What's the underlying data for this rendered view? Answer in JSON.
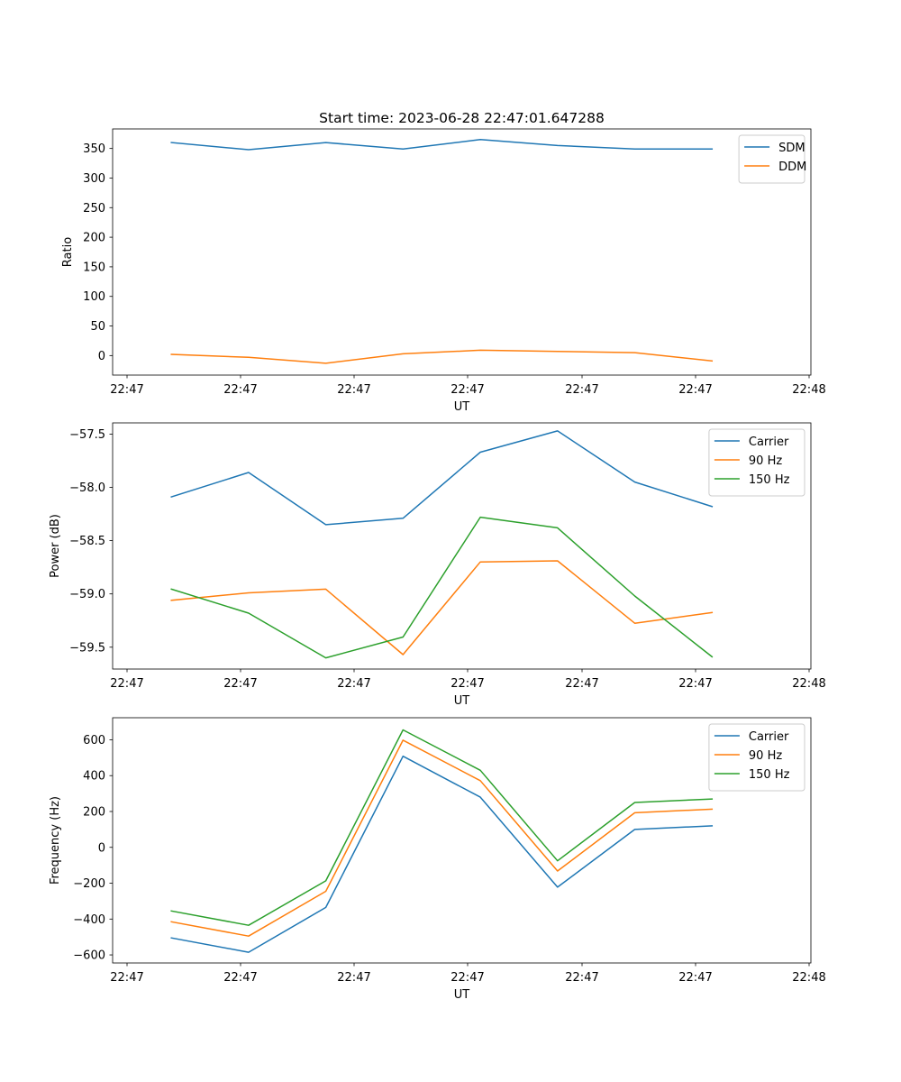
{
  "chart_data": [
    {
      "type": "line",
      "title": "Start time: 2023-06-28 22:47:01.647288",
      "xlabel": "UT",
      "ylabel": "Ratio",
      "x": [
        1,
        2,
        3,
        4,
        5,
        6,
        7,
        8
      ],
      "xtick_labels": [
        "22:47",
        "22:47",
        "22:47",
        "22:47",
        "22:47",
        "22:47",
        "22:48"
      ],
      "xlim": [
        0.24,
        9.28
      ],
      "ylim": [
        -33,
        383
      ],
      "yticks": [
        0,
        50,
        100,
        150,
        200,
        250,
        300,
        350
      ],
      "legend_position": "upper right",
      "grid": false,
      "series": [
        {
          "name": "SDM",
          "color": "#1f77b4",
          "values": [
            360,
            348,
            360,
            349,
            365,
            355,
            349,
            349
          ]
        },
        {
          "name": "DDM",
          "color": "#ff7f0e",
          "values": [
            2,
            -3,
            -13,
            3,
            9,
            7,
            5,
            -9
          ]
        }
      ]
    },
    {
      "type": "line",
      "title": "",
      "xlabel": "UT",
      "ylabel": "Power (dB)",
      "x": [
        1,
        2,
        3,
        4,
        5,
        6,
        7,
        8
      ],
      "xtick_labels": [
        "22:47",
        "22:47",
        "22:47",
        "22:47",
        "22:47",
        "22:47",
        "22:48"
      ],
      "xlim": [
        0.24,
        9.28
      ],
      "ylim": [
        -59.705,
        -57.395
      ],
      "yticks": [
        -59.5,
        -59.0,
        -58.5,
        -58.0,
        -57.5
      ],
      "ytick_labels": [
        "−59.5",
        "−59.0",
        "−58.5",
        "−58.0",
        "−57.5"
      ],
      "legend_position": "upper right",
      "grid": false,
      "series": [
        {
          "name": "Carrier",
          "color": "#1f77b4",
          "values": [
            -58.09,
            -57.86,
            -58.35,
            -58.29,
            -57.67,
            -57.47,
            -57.95,
            -58.18
          ]
        },
        {
          "name": "90 Hz",
          "color": "#ff7f0e",
          "values": [
            -59.06,
            -58.99,
            -58.955,
            -59.57,
            -58.7,
            -58.69,
            -59.275,
            -59.175
          ]
        },
        {
          "name": "150 Hz",
          "color": "#2ca02c",
          "values": [
            -58.955,
            -59.18,
            -59.6,
            -59.405,
            -58.28,
            -58.38,
            -59.02,
            -59.59
          ]
        }
      ]
    },
    {
      "type": "line",
      "title": "",
      "xlabel": "UT",
      "ylabel": "Frequency (Hz)",
      "x": [
        1,
        2,
        3,
        4,
        5,
        6,
        7,
        8
      ],
      "xtick_labels": [
        "22:47",
        "22:47",
        "22:47",
        "22:47",
        "22:47",
        "22:47",
        "22:48"
      ],
      "xlim": [
        0.24,
        9.28
      ],
      "ylim": [
        -645,
        723
      ],
      "yticks": [
        -600,
        -400,
        -200,
        0,
        200,
        400,
        600
      ],
      "ytick_labels": [
        "−600",
        "−400",
        "−200",
        "0",
        "200",
        "400",
        "600"
      ],
      "legend_position": "upper right",
      "grid": false,
      "series": [
        {
          "name": "Carrier",
          "color": "#1f77b4",
          "values": [
            -505,
            -585,
            -335,
            508,
            280,
            -222,
            100,
            120
          ]
        },
        {
          "name": "90 Hz",
          "color": "#ff7f0e",
          "values": [
            -415,
            -495,
            -245,
            598,
            372,
            -132,
            193,
            213
          ]
        },
        {
          "name": "150 Hz",
          "color": "#2ca02c",
          "values": [
            -355,
            -435,
            -187,
            655,
            430,
            -75,
            250,
            270
          ]
        }
      ]
    }
  ]
}
